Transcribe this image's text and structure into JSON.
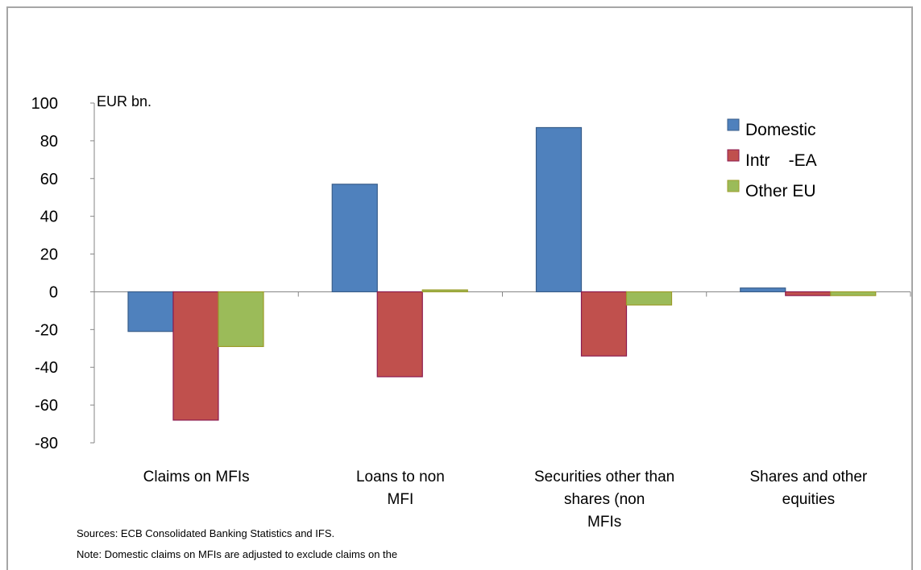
{
  "chart_data": {
    "type": "bar",
    "ylabel": "EUR bn.",
    "ylim": [
      -80,
      100
    ],
    "yticks": [
      "100",
      "80",
      "60",
      "40",
      "20",
      "0",
      "-20",
      "-40",
      "-60",
      "-80"
    ],
    "categories": [
      [
        "Claims on MFIs"
      ],
      [
        "Loans to non",
        "MFI"
      ],
      [
        "Securities other than",
        "shares (non",
        "MFIs"
      ],
      [
        "Shares and other",
        "equities"
      ]
    ],
    "series": [
      {
        "name": "Domestic",
        "color": "#4f81bd",
        "border": "#385d8a",
        "values": [
          -21,
          57,
          87,
          2
        ]
      },
      {
        "name": "Intr    -EA",
        "color": "#c0504d",
        "border": "#8c1a4f",
        "values": [
          -68,
          -45,
          -34,
          -2
        ]
      },
      {
        "name": "Other EU",
        "color": "#9bbb59",
        "border": "#9c9c2a",
        "values": [
          -29,
          1,
          -7,
          -2
        ]
      }
    ],
    "legend_position": "top-right",
    "grid": false
  },
  "notes": {
    "sources": "Sources: ECB Consolidated Banking Statistics and IFS.",
    "note": "Note: Domestic claims on MFIs are adjusted to exclude claims on the"
  }
}
